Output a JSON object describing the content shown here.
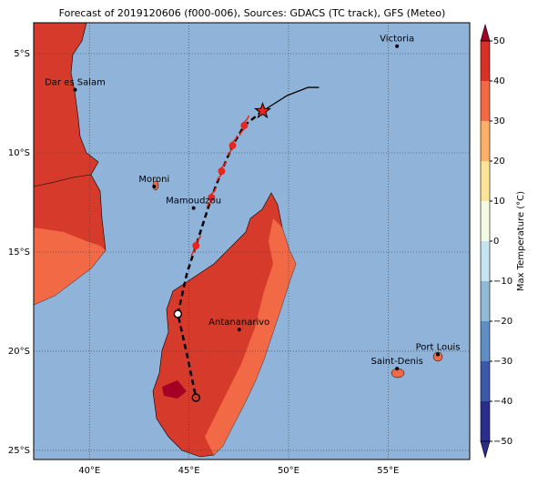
{
  "title": "Forecast of 2019120606 (f000-006), Sources: GDACS (TC track), GFS (Meteo)",
  "map": {
    "xlim": [
      37.2,
      59.1
    ],
    "ylim": [
      -25.46,
      -3.44
    ],
    "xticks": [
      {
        "value": 40,
        "label": "40°E"
      },
      {
        "value": 45,
        "label": "45°E"
      },
      {
        "value": 50,
        "label": "50°E"
      },
      {
        "value": 55,
        "label": "55°E"
      }
    ],
    "yticks": [
      {
        "value": -5,
        "label": "5°S"
      },
      {
        "value": -10,
        "label": "10°S"
      },
      {
        "value": -15,
        "label": "15°S"
      },
      {
        "value": -20,
        "label": "20°S"
      },
      {
        "value": -25,
        "label": "25°S"
      }
    ],
    "cities": [
      {
        "name": "Victoria",
        "lon": 55.45,
        "lat": -4.62
      },
      {
        "name": "Dar es Salam",
        "lon": 39.28,
        "lat": -6.82
      },
      {
        "name": "Moroni",
        "lon": 43.25,
        "lat": -11.7
      },
      {
        "name": "Mamoudzou",
        "lon": 45.23,
        "lat": -12.78
      },
      {
        "name": "Antananarivo",
        "lon": 47.52,
        "lat": -18.91
      },
      {
        "name": "Saint-Denis",
        "lon": 55.45,
        "lat": -20.88
      },
      {
        "name": "Port Louis",
        "lon": 57.5,
        "lat": -20.16
      }
    ],
    "track": {
      "lon": [
        51.53,
        50.98,
        49.93,
        48.7,
        47.78,
        47.19,
        46.64,
        46.13,
        45.35,
        44.9,
        44.44,
        44.9,
        45.35
      ],
      "lat": [
        -6.7,
        -6.7,
        -7.11,
        -7.89,
        -8.62,
        -9.63,
        -10.92,
        -12.25,
        -14.68,
        -16.06,
        -18.12,
        -20.18,
        -22.34
      ]
    }
  },
  "colorbar": {
    "label": "Max Temperature (°C)",
    "lim": [
      -50,
      50
    ],
    "ticks": [
      {
        "value": -50,
        "label": "−50"
      },
      {
        "value": -40,
        "label": "−40"
      },
      {
        "value": -30,
        "label": "−30"
      },
      {
        "value": -20,
        "label": "−20"
      },
      {
        "value": -10,
        "label": "−10"
      },
      0,
      10,
      20,
      30,
      40,
      50
    ],
    "colors": [
      "#2a2e8a",
      "#3a5aa8",
      "#5f8fc2",
      "#8fbad8",
      "#c6e4ef",
      "#f3fbe5",
      "#fde39a",
      "#fbb068",
      "#f26a45",
      "#d73027",
      "#a50026"
    ]
  }
}
